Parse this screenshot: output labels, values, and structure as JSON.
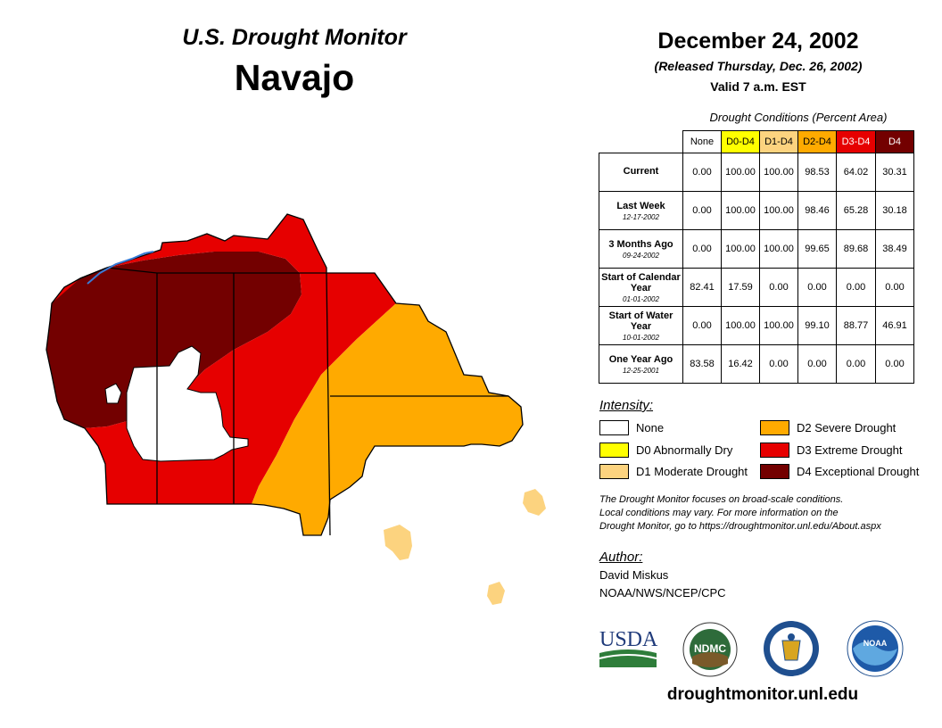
{
  "header": {
    "title": "U.S. Drought Monitor",
    "region": "Navajo",
    "date": "December 24, 2002",
    "released": "(Released Thursday, Dec. 26, 2002)",
    "valid": "Valid 7 a.m. EST"
  },
  "table": {
    "title": "Drought Conditions (Percent Area)",
    "columns": [
      {
        "label": "None",
        "color": "#ffffff",
        "text_color": "#000000"
      },
      {
        "label": "D0-D4",
        "color": "#ffff00",
        "text_color": "#000000"
      },
      {
        "label": "D1-D4",
        "color": "#fcd37f",
        "text_color": "#000000"
      },
      {
        "label": "D2-D4",
        "color": "#ffaa00",
        "text_color": "#000000"
      },
      {
        "label": "D3-D4",
        "color": "#e60000",
        "text_color": "#ffffff"
      },
      {
        "label": "D4",
        "color": "#730000",
        "text_color": "#ffffff"
      }
    ],
    "rows": [
      {
        "label": "Current",
        "sublabel": "",
        "values": [
          "0.00",
          "100.00",
          "100.00",
          "98.53",
          "64.02",
          "30.31"
        ]
      },
      {
        "label": "Last Week",
        "sublabel": "12-17-2002",
        "values": [
          "0.00",
          "100.00",
          "100.00",
          "98.46",
          "65.28",
          "30.18"
        ]
      },
      {
        "label": "3 Months Ago",
        "sublabel": "09-24-2002",
        "values": [
          "0.00",
          "100.00",
          "100.00",
          "99.65",
          "89.68",
          "38.49"
        ]
      },
      {
        "label": "Start of Calendar Year",
        "sublabel": "01-01-2002",
        "values": [
          "82.41",
          "17.59",
          "0.00",
          "0.00",
          "0.00",
          "0.00"
        ]
      },
      {
        "label": "Start of Water Year",
        "sublabel": "10-01-2002",
        "values": [
          "0.00",
          "100.00",
          "100.00",
          "99.10",
          "88.77",
          "46.91"
        ]
      },
      {
        "label": "One Year Ago",
        "sublabel": "12-25-2001",
        "values": [
          "83.58",
          "16.42",
          "0.00",
          "0.00",
          "0.00",
          "0.00"
        ]
      }
    ]
  },
  "legend": {
    "title": "Intensity:",
    "items": [
      {
        "label": "None",
        "color": "#ffffff"
      },
      {
        "label": "D0 Abnormally Dry",
        "color": "#ffff00"
      },
      {
        "label": "D1 Moderate Drought",
        "color": "#fcd37f"
      },
      {
        "label": "D2 Severe Drought",
        "color": "#ffaa00"
      },
      {
        "label": "D3 Extreme Drought",
        "color": "#e60000"
      },
      {
        "label": "D4 Exceptional Drought",
        "color": "#730000"
      }
    ]
  },
  "note": {
    "line1": "The Drought Monitor focuses on broad-scale conditions.",
    "line2": "Local conditions may vary. For more information on the",
    "line3": "Drought Monitor, go to https://droughtmonitor.unl.edu/About.aspx"
  },
  "author": {
    "title": "Author:",
    "name": "David Miskus",
    "org": "NOAA/NWS/NCEP/CPC"
  },
  "logos": {
    "usda": "USDA",
    "ndmc": "NDMC",
    "noaa": "NOAA"
  },
  "site": "droughtmonitor.unl.edu",
  "map": {
    "colors": {
      "d4": "#730000",
      "d3": "#e60000",
      "d2": "#ffaa00",
      "d1": "#fcd37f",
      "none": "#ffffff",
      "river": "#3a7bd5"
    }
  }
}
